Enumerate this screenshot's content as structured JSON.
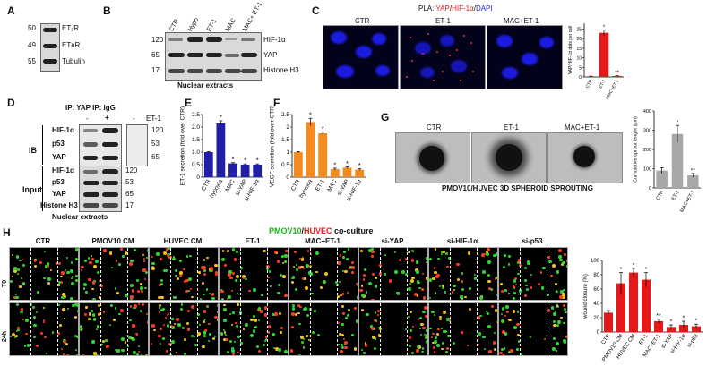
{
  "panels": {
    "A": {
      "letter": "A",
      "mw": [
        "50",
        "49",
        "55"
      ],
      "labels": [
        "ETₐR",
        "ETʙR",
        "Tubulin"
      ]
    },
    "B": {
      "letter": "B",
      "lanes": [
        "CTR",
        "Hypo",
        "ET-1",
        "MAC",
        "MAC+ ET-1"
      ],
      "mw": [
        "120",
        "65",
        "17"
      ],
      "labels": [
        "HIF-1α",
        "YAP",
        "Histone H3"
      ],
      "caption": "Nuclear extracts"
    },
    "C": {
      "letter": "C",
      "title_prefix": "PLA: ",
      "title_yap": "YAP",
      "title_sep": "/",
      "title_hif": "HIF-1α",
      "title_dapi": "DAPI",
      "images": [
        "CTR",
        "ET-1",
        "MAC+ET-1"
      ],
      "ylabel": "YAP/HIF-1α dots per cell",
      "xcats": [
        "CTR",
        "ET-1",
        "MAC+ET-1"
      ],
      "sig": [
        "*",
        "**"
      ]
    },
    "D": {
      "letter": "D",
      "header": "IP: YAP IP: IgG",
      "signs": [
        "-",
        "+",
        "-"
      ],
      "et1": "ET-1",
      "ib": "IB",
      "input": "Input",
      "ib_labels": [
        "HIF-1α",
        "p53",
        "YAP"
      ],
      "ib_mw": [
        "120",
        "53",
        "65"
      ],
      "input_labels": [
        "HIF-1α",
        "p53",
        "YAP",
        "Histone H3"
      ],
      "input_mw": [
        "120",
        "53",
        "65",
        "17"
      ],
      "caption": "Nuclear extracts"
    },
    "E": {
      "letter": "E"
    },
    "F": {
      "letter": "F"
    },
    "G": {
      "letter": "G",
      "images": [
        "CTR",
        "ET-1",
        "MAC+ET-1"
      ],
      "caption": "PMOV10/HUVEC 3D SPHEROID SPROUTING",
      "ylabel": "Cumulative sprout lenght (μm)",
      "xcats": [
        "CTR",
        "ET-1",
        "MAC+ET-1"
      ],
      "sig": [
        "*",
        "**"
      ]
    },
    "H": {
      "letter": "H",
      "title_green": "PMOV10",
      "title_sep": "/",
      "title_red": "HUVEC",
      "title_rest": " co-culture",
      "columns": [
        "CTR",
        "PMOV10 CM",
        "HUVEC CM",
        "ET-1",
        "MAC+ET-1",
        "si-YAP",
        "si-HIF-1α",
        "si-p53"
      ],
      "rows": [
        "T0",
        "24h"
      ]
    }
  },
  "chart_data": [
    {
      "type": "bar",
      "panel": "E",
      "ylabel": "ET-1 secretion (fold over CTR)",
      "categories": [
        "CTR",
        "hypoxia",
        "MAC",
        "si-YAP",
        "si-HIF-1α"
      ],
      "values": [
        1.0,
        2.15,
        0.55,
        0.5,
        0.5
      ],
      "errors": [
        0.02,
        0.1,
        0.03,
        0.03,
        0.03
      ],
      "sig": [
        "",
        "*",
        "*",
        "*",
        "*"
      ],
      "yticks": [
        "0",
        "0.5",
        "1.0",
        "1.5",
        "2.0",
        "2.5"
      ],
      "ylim": [
        0,
        2.5
      ],
      "color": "#1f1fa8"
    },
    {
      "type": "bar",
      "panel": "F",
      "ylabel": "VEGF secretion (fold over CTR)",
      "categories": [
        "CTR",
        "hypoxia",
        "ET-1",
        "MAC",
        "si-YAP",
        "si-HIF-1α"
      ],
      "values": [
        1.0,
        2.2,
        1.75,
        0.32,
        0.38,
        0.3
      ],
      "errors": [
        0.02,
        0.15,
        0.05,
        0.04,
        0.03,
        0.04
      ],
      "sig": [
        "",
        "*",
        "*",
        "*",
        "*",
        "*"
      ],
      "yticks": [
        "0",
        "0.5",
        "1",
        "1.5",
        "2",
        "2.5"
      ],
      "ylim": [
        0,
        2.5
      ],
      "color": "#f58a1f"
    },
    {
      "type": "bar",
      "panel": "C",
      "ylabel": "YAP/HIF-1α dots per cell",
      "categories": [
        "CTR",
        "ET-1",
        "MAC+ET-1"
      ],
      "values": [
        0.3,
        23,
        0.5
      ],
      "errors": [
        0.1,
        1.5,
        0.1
      ],
      "sig": [
        "",
        "*",
        "**"
      ],
      "yticks": [
        "0",
        "5",
        "10",
        "15",
        "20",
        "25"
      ],
      "ylim": [
        0,
        28
      ],
      "color": "#e41a1a"
    },
    {
      "type": "bar",
      "panel": "G",
      "ylabel": "Cumulative sprout lenght (μm)",
      "categories": [
        "CTR",
        "ET-1",
        "MAC+ET-1"
      ],
      "values": [
        90,
        280,
        65
      ],
      "errors": [
        15,
        45,
        10
      ],
      "sig": [
        "",
        "*",
        "**"
      ],
      "yticks": [
        "0",
        "100",
        "200",
        "300",
        "400"
      ],
      "ylim": [
        0,
        400
      ],
      "color": "#a8a8a8"
    },
    {
      "type": "bar",
      "panel": "H",
      "ylabel": "wound closure (%)",
      "categories": [
        "CTR",
        "PMOV10 CM",
        "HUVEC CM",
        "ET-1",
        "MAC+ET-1",
        "si-YAP",
        "si-HIF-1α",
        "si-p53"
      ],
      "values": [
        27,
        68,
        83,
        73,
        15,
        7,
        10,
        8
      ],
      "errors": [
        3,
        15,
        6,
        10,
        3,
        3,
        5,
        3
      ],
      "sig": [
        "",
        "*",
        "*",
        "*",
        "**",
        "*",
        "*",
        "*"
      ],
      "yticks": [
        "0",
        "20",
        "40",
        "60",
        "80",
        "100"
      ],
      "ylim": [
        0,
        100
      ],
      "color": "#e41a1a"
    }
  ]
}
